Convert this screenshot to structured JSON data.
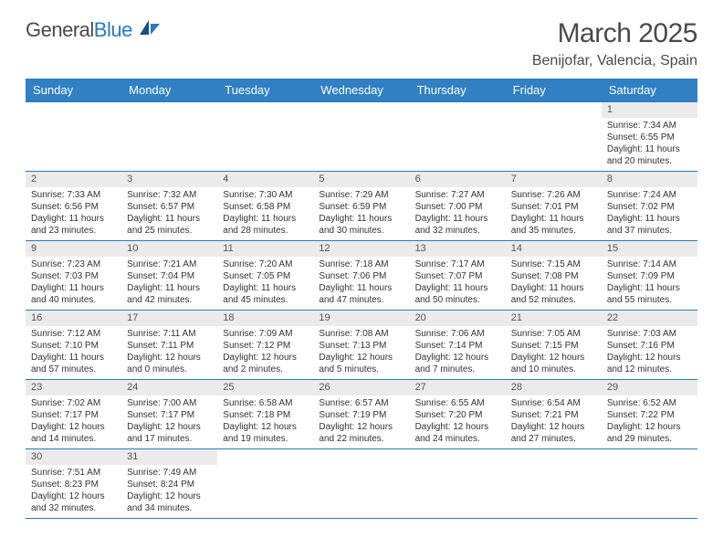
{
  "logo": {
    "text1": "General",
    "text2": "Blue"
  },
  "title": {
    "month": "March 2025",
    "location": "Benijofar, Valencia, Spain"
  },
  "weekdays": [
    "Sunday",
    "Monday",
    "Tuesday",
    "Wednesday",
    "Thursday",
    "Friday",
    "Saturday"
  ],
  "colors": {
    "header_bg": "#3080c3",
    "border": "#2a7ab9",
    "daynum_bg": "#ebebeb"
  },
  "weeks": [
    [
      null,
      null,
      null,
      null,
      null,
      null,
      {
        "n": "1",
        "sr": "Sunrise: 7:34 AM",
        "ss": "Sunset: 6:55 PM",
        "dl": "Daylight: 11 hours and 20 minutes."
      }
    ],
    [
      {
        "n": "2",
        "sr": "Sunrise: 7:33 AM",
        "ss": "Sunset: 6:56 PM",
        "dl": "Daylight: 11 hours and 23 minutes."
      },
      {
        "n": "3",
        "sr": "Sunrise: 7:32 AM",
        "ss": "Sunset: 6:57 PM",
        "dl": "Daylight: 11 hours and 25 minutes."
      },
      {
        "n": "4",
        "sr": "Sunrise: 7:30 AM",
        "ss": "Sunset: 6:58 PM",
        "dl": "Daylight: 11 hours and 28 minutes."
      },
      {
        "n": "5",
        "sr": "Sunrise: 7:29 AM",
        "ss": "Sunset: 6:59 PM",
        "dl": "Daylight: 11 hours and 30 minutes."
      },
      {
        "n": "6",
        "sr": "Sunrise: 7:27 AM",
        "ss": "Sunset: 7:00 PM",
        "dl": "Daylight: 11 hours and 32 minutes."
      },
      {
        "n": "7",
        "sr": "Sunrise: 7:26 AM",
        "ss": "Sunset: 7:01 PM",
        "dl": "Daylight: 11 hours and 35 minutes."
      },
      {
        "n": "8",
        "sr": "Sunrise: 7:24 AM",
        "ss": "Sunset: 7:02 PM",
        "dl": "Daylight: 11 hours and 37 minutes."
      }
    ],
    [
      {
        "n": "9",
        "sr": "Sunrise: 7:23 AM",
        "ss": "Sunset: 7:03 PM",
        "dl": "Daylight: 11 hours and 40 minutes."
      },
      {
        "n": "10",
        "sr": "Sunrise: 7:21 AM",
        "ss": "Sunset: 7:04 PM",
        "dl": "Daylight: 11 hours and 42 minutes."
      },
      {
        "n": "11",
        "sr": "Sunrise: 7:20 AM",
        "ss": "Sunset: 7:05 PM",
        "dl": "Daylight: 11 hours and 45 minutes."
      },
      {
        "n": "12",
        "sr": "Sunrise: 7:18 AM",
        "ss": "Sunset: 7:06 PM",
        "dl": "Daylight: 11 hours and 47 minutes."
      },
      {
        "n": "13",
        "sr": "Sunrise: 7:17 AM",
        "ss": "Sunset: 7:07 PM",
        "dl": "Daylight: 11 hours and 50 minutes."
      },
      {
        "n": "14",
        "sr": "Sunrise: 7:15 AM",
        "ss": "Sunset: 7:08 PM",
        "dl": "Daylight: 11 hours and 52 minutes."
      },
      {
        "n": "15",
        "sr": "Sunrise: 7:14 AM",
        "ss": "Sunset: 7:09 PM",
        "dl": "Daylight: 11 hours and 55 minutes."
      }
    ],
    [
      {
        "n": "16",
        "sr": "Sunrise: 7:12 AM",
        "ss": "Sunset: 7:10 PM",
        "dl": "Daylight: 11 hours and 57 minutes."
      },
      {
        "n": "17",
        "sr": "Sunrise: 7:11 AM",
        "ss": "Sunset: 7:11 PM",
        "dl": "Daylight: 12 hours and 0 minutes."
      },
      {
        "n": "18",
        "sr": "Sunrise: 7:09 AM",
        "ss": "Sunset: 7:12 PM",
        "dl": "Daylight: 12 hours and 2 minutes."
      },
      {
        "n": "19",
        "sr": "Sunrise: 7:08 AM",
        "ss": "Sunset: 7:13 PM",
        "dl": "Daylight: 12 hours and 5 minutes."
      },
      {
        "n": "20",
        "sr": "Sunrise: 7:06 AM",
        "ss": "Sunset: 7:14 PM",
        "dl": "Daylight: 12 hours and 7 minutes."
      },
      {
        "n": "21",
        "sr": "Sunrise: 7:05 AM",
        "ss": "Sunset: 7:15 PM",
        "dl": "Daylight: 12 hours and 10 minutes."
      },
      {
        "n": "22",
        "sr": "Sunrise: 7:03 AM",
        "ss": "Sunset: 7:16 PM",
        "dl": "Daylight: 12 hours and 12 minutes."
      }
    ],
    [
      {
        "n": "23",
        "sr": "Sunrise: 7:02 AM",
        "ss": "Sunset: 7:17 PM",
        "dl": "Daylight: 12 hours and 14 minutes."
      },
      {
        "n": "24",
        "sr": "Sunrise: 7:00 AM",
        "ss": "Sunset: 7:17 PM",
        "dl": "Daylight: 12 hours and 17 minutes."
      },
      {
        "n": "25",
        "sr": "Sunrise: 6:58 AM",
        "ss": "Sunset: 7:18 PM",
        "dl": "Daylight: 12 hours and 19 minutes."
      },
      {
        "n": "26",
        "sr": "Sunrise: 6:57 AM",
        "ss": "Sunset: 7:19 PM",
        "dl": "Daylight: 12 hours and 22 minutes."
      },
      {
        "n": "27",
        "sr": "Sunrise: 6:55 AM",
        "ss": "Sunset: 7:20 PM",
        "dl": "Daylight: 12 hours and 24 minutes."
      },
      {
        "n": "28",
        "sr": "Sunrise: 6:54 AM",
        "ss": "Sunset: 7:21 PM",
        "dl": "Daylight: 12 hours and 27 minutes."
      },
      {
        "n": "29",
        "sr": "Sunrise: 6:52 AM",
        "ss": "Sunset: 7:22 PM",
        "dl": "Daylight: 12 hours and 29 minutes."
      }
    ],
    [
      {
        "n": "30",
        "sr": "Sunrise: 7:51 AM",
        "ss": "Sunset: 8:23 PM",
        "dl": "Daylight: 12 hours and 32 minutes."
      },
      {
        "n": "31",
        "sr": "Sunrise: 7:49 AM",
        "ss": "Sunset: 8:24 PM",
        "dl": "Daylight: 12 hours and 34 minutes."
      },
      null,
      null,
      null,
      null,
      null
    ]
  ]
}
